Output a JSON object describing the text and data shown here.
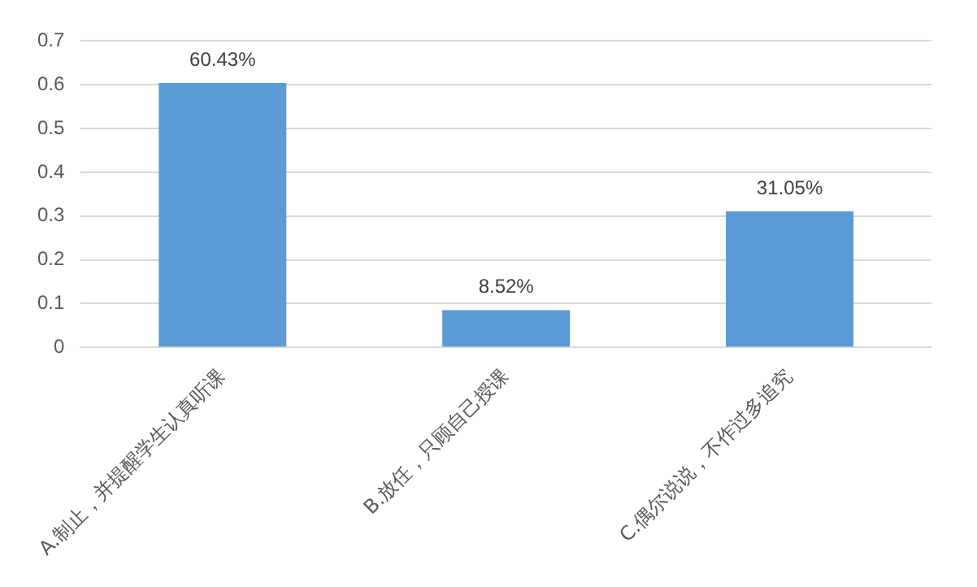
{
  "chart_data": {
    "type": "bar",
    "categories": [
      "A.制止，并提醒学生认真听课",
      "B.放任，只顾自己授课",
      "C.偶尔说说，不作过多追究"
    ],
    "values": [
      0.6043,
      0.0852,
      0.3105
    ],
    "value_labels": [
      "60.43%",
      "8.52%",
      "31.05%"
    ],
    "color": "#5b9bd5",
    "ylim": [
      0,
      0.7
    ],
    "yticks": [
      0,
      0.1,
      0.2,
      0.3,
      0.4,
      0.5,
      0.6,
      0.7
    ],
    "grid": "y",
    "legend": false
  }
}
